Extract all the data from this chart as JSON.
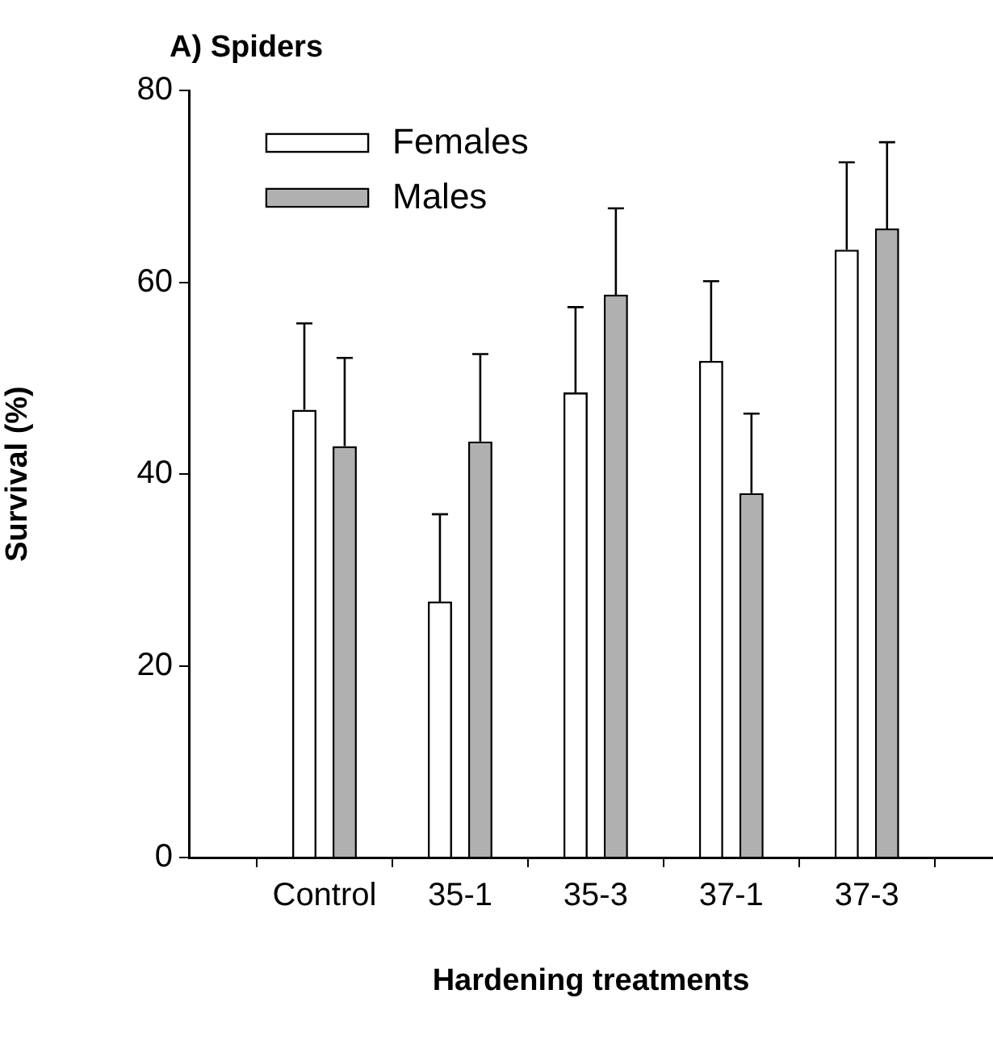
{
  "chart_data": {
    "type": "bar",
    "title": "A) Spiders",
    "xlabel": "Hardening treatments",
    "ylabel": "Survival (%)",
    "categories": [
      "Control",
      "35-1",
      "35-3",
      "37-1",
      "37-3"
    ],
    "series": [
      {
        "name": "Females",
        "color": "#ffffff",
        "values": [
          46.7,
          26.7,
          48.5,
          51.8,
          63.4
        ],
        "errors": [
          [
            46.7,
            55.7
          ],
          [
            26.7,
            35.8
          ],
          [
            48.5,
            57.4
          ],
          [
            51.8,
            60.1
          ],
          [
            63.4,
            72.5
          ]
        ]
      },
      {
        "name": "Males",
        "color": "#b0b0b0",
        "values": [
          42.9,
          43.4,
          58.7,
          38.0,
          65.6
        ],
        "errors": [
          [
            42.9,
            52.1
          ],
          [
            43.4,
            52.5
          ],
          [
            58.7,
            67.7
          ],
          [
            38.0,
            46.3
          ],
          [
            65.6,
            74.6
          ]
        ]
      }
    ],
    "ylim": [
      0,
      80
    ],
    "yticks": [
      0,
      20,
      40,
      60,
      80
    ],
    "grid": false,
    "legend": "top left"
  }
}
